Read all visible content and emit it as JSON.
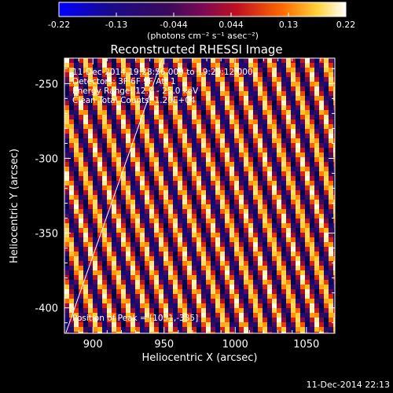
{
  "colorbar": {
    "tick_labels": [
      "-0.22",
      "-0.13",
      "-0.044",
      "0.044",
      "0.13",
      "0.22"
    ],
    "unit_label": "(photons cm⁻² s⁻¹ asec⁻²)"
  },
  "image": {
    "title": "Reconstructed RHESSI Image",
    "info_lines": [
      "11-Dec-2014 19:28:56.000 to 19:29:12.000",
      "Detectors: 3F 6F 9F Att 1",
      "Energy Range: 12.0 - 25.0 keV",
      "Clean     Total Counts: 1.20E+04"
    ],
    "peak_text": "Position of Peak = [1031,-335]"
  },
  "x_axis": {
    "label": "Heliocentric X (arcsec)",
    "ticks": [
      "900",
      "950",
      "1000",
      "1050"
    ]
  },
  "y_axis": {
    "label": "Heliocentric Y (arcsec)",
    "ticks": [
      "-250",
      "-300",
      "-350",
      "-400"
    ]
  },
  "footer": {
    "timestamp": "11-Dec-2014 22:13"
  },
  "colors": {
    "background": "#000000",
    "text": "#ffffff"
  }
}
